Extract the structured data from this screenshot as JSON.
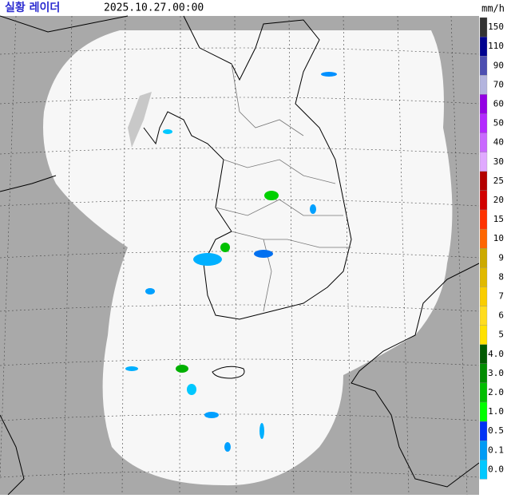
{
  "header": {
    "title": "실황 레이더",
    "time": "2025.10.27.00:00",
    "unit": "mm/h"
  },
  "legend": {
    "items": [
      {
        "label": "150",
        "color": "#333333"
      },
      {
        "label": "110",
        "color": "#000390"
      },
      {
        "label": "90",
        "color": "#4c4eb1"
      },
      {
        "label": "70",
        "color": "#b3b4de"
      },
      {
        "label": "60",
        "color": "#9300e4"
      },
      {
        "label": "50",
        "color": "#b329ff"
      },
      {
        "label": "40",
        "color": "#c969ff"
      },
      {
        "label": "30",
        "color": "#e0a9ff"
      },
      {
        "label": "25",
        "color": "#b40000"
      },
      {
        "label": "20",
        "color": "#d20000"
      },
      {
        "label": "15",
        "color": "#ff3200"
      },
      {
        "label": "10",
        "color": "#ff6600"
      },
      {
        "label": "9",
        "color": "#ccaa00"
      },
      {
        "label": "8",
        "color": "#e0b900"
      },
      {
        "label": "7",
        "color": "#f9cd00"
      },
      {
        "label": "6",
        "color": "#ffdc1f"
      },
      {
        "label": "5",
        "color": "#ffe100"
      },
      {
        "label": "4.0",
        "color": "#005a00"
      },
      {
        "label": "3.0",
        "color": "#008c00"
      },
      {
        "label": "2.0",
        "color": "#00be00"
      },
      {
        "label": "1.0",
        "color": "#00ff00"
      },
      {
        "label": "0.5",
        "color": "#0033f5"
      },
      {
        "label": "0.1",
        "color": "#009bf5"
      },
      {
        "label": "0.0",
        "color": "#00c8ff"
      }
    ]
  }
}
